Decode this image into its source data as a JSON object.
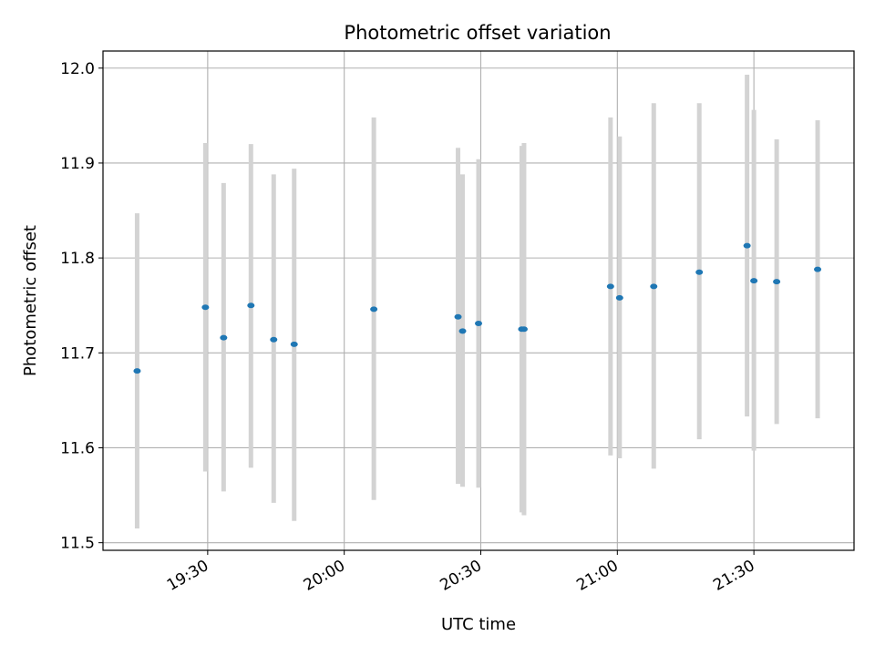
{
  "chart_data": {
    "type": "scatter",
    "title": "Photometric offset variation",
    "xlabel": "UTC time",
    "ylabel": "Photometric offset",
    "xlim": [
      "19:07",
      "21:52"
    ],
    "ylim": [
      11.492,
      12.018
    ],
    "grid": true,
    "xticks": [
      "19:30",
      "20:00",
      "20:30",
      "21:00",
      "21:30"
    ],
    "yticks": [
      11.5,
      11.6,
      11.7,
      11.8,
      11.9,
      12.0
    ],
    "ytick_labels": [
      "11.5",
      "11.6",
      "11.7",
      "11.8",
      "11.9",
      "12.0"
    ],
    "point_color": "#1f77b4",
    "errorbar_color": "#d3d3d3",
    "points": [
      {
        "x": "19:14:30",
        "y": 11.681,
        "ylow": 11.515,
        "yhigh": 11.847
      },
      {
        "x": "19:29:30",
        "y": 11.748,
        "ylow": 11.575,
        "yhigh": 11.921
      },
      {
        "x": "19:33:30",
        "y": 11.716,
        "ylow": 11.554,
        "yhigh": 11.879
      },
      {
        "x": "19:39:30",
        "y": 11.75,
        "ylow": 11.579,
        "yhigh": 11.92
      },
      {
        "x": "19:44:30",
        "y": 11.714,
        "ylow": 11.542,
        "yhigh": 11.888
      },
      {
        "x": "19:49:00",
        "y": 11.709,
        "ylow": 11.523,
        "yhigh": 11.894
      },
      {
        "x": "20:06:30",
        "y": 11.746,
        "ylow": 11.545,
        "yhigh": 11.948
      },
      {
        "x": "20:25:00",
        "y": 11.738,
        "ylow": 11.562,
        "yhigh": 11.916
      },
      {
        "x": "20:26:00",
        "y": 11.723,
        "ylow": 11.559,
        "yhigh": 11.888
      },
      {
        "x": "20:29:30",
        "y": 11.731,
        "ylow": 11.558,
        "yhigh": 11.904
      },
      {
        "x": "20:39:00",
        "y": 11.725,
        "ylow": 11.532,
        "yhigh": 11.918
      },
      {
        "x": "20:39:30",
        "y": 11.725,
        "ylow": 11.529,
        "yhigh": 11.921
      },
      {
        "x": "20:58:30",
        "y": 11.77,
        "ylow": 11.592,
        "yhigh": 11.948
      },
      {
        "x": "21:00:30",
        "y": 11.758,
        "ylow": 11.589,
        "yhigh": 11.928
      },
      {
        "x": "21:08:00",
        "y": 11.77,
        "ylow": 11.578,
        "yhigh": 11.963
      },
      {
        "x": "21:18:00",
        "y": 11.785,
        "ylow": 11.609,
        "yhigh": 11.963
      },
      {
        "x": "21:28:30",
        "y": 11.813,
        "ylow": 11.633,
        "yhigh": 11.993
      },
      {
        "x": "21:30:00",
        "y": 11.776,
        "ylow": 11.597,
        "yhigh": 11.956
      },
      {
        "x": "21:35:00",
        "y": 11.775,
        "ylow": 11.625,
        "yhigh": 11.925
      },
      {
        "x": "21:44:00",
        "y": 11.788,
        "ylow": 11.631,
        "yhigh": 11.945
      }
    ]
  }
}
